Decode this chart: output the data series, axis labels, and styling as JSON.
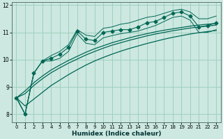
{
  "xlabel": "Humidex (Indice chaleur)",
  "background_color": "#cce8e0",
  "grid_color": "#99ccbb",
  "line_color": "#006655",
  "x_values": [
    0,
    1,
    2,
    3,
    4,
    5,
    6,
    7,
    8,
    9,
    10,
    11,
    12,
    13,
    14,
    15,
    16,
    17,
    18,
    19,
    20,
    21,
    22,
    23
  ],
  "y_main": [
    8.6,
    8.0,
    9.5,
    9.95,
    10.05,
    10.2,
    10.45,
    11.05,
    10.75,
    10.7,
    11.0,
    11.05,
    11.1,
    11.1,
    11.2,
    11.35,
    11.4,
    11.55,
    11.7,
    11.75,
    11.6,
    11.2,
    11.25,
    11.35
  ],
  "y_env_upper": [
    8.6,
    8.0,
    9.5,
    9.95,
    10.15,
    10.3,
    10.55,
    11.1,
    10.9,
    10.85,
    11.15,
    11.2,
    11.3,
    11.35,
    11.45,
    11.55,
    11.6,
    11.7,
    11.8,
    11.85,
    11.75,
    11.5,
    11.5,
    11.6
  ],
  "y_env_lower": [
    8.6,
    8.0,
    9.5,
    9.95,
    9.95,
    10.05,
    10.3,
    10.95,
    10.6,
    10.55,
    10.8,
    10.88,
    10.95,
    11.0,
    11.05,
    11.15,
    11.25,
    11.4,
    11.55,
    11.6,
    11.45,
    11.0,
    11.0,
    11.1
  ],
  "y_trend_top": [
    8.6,
    8.85,
    9.15,
    9.4,
    9.62,
    9.8,
    9.97,
    10.12,
    10.27,
    10.4,
    10.51,
    10.62,
    10.71,
    10.8,
    10.88,
    10.95,
    11.02,
    11.08,
    11.13,
    11.18,
    11.23,
    11.27,
    11.3,
    11.33
  ],
  "y_trend_mid": [
    8.6,
    8.75,
    9.05,
    9.3,
    9.52,
    9.7,
    9.87,
    10.02,
    10.17,
    10.3,
    10.42,
    10.53,
    10.62,
    10.71,
    10.79,
    10.87,
    10.94,
    11.0,
    11.06,
    11.11,
    11.16,
    11.2,
    11.23,
    11.27
  ],
  "y_trend_bot": [
    8.6,
    8.3,
    8.55,
    8.8,
    9.05,
    9.25,
    9.45,
    9.63,
    9.8,
    9.95,
    10.08,
    10.2,
    10.31,
    10.41,
    10.5,
    10.59,
    10.67,
    10.75,
    10.82,
    10.88,
    10.94,
    10.99,
    11.03,
    11.07
  ],
  "ylim": [
    7.7,
    12.1
  ],
  "yticks": [
    8,
    9,
    10,
    11,
    12
  ],
  "xticks": [
    0,
    1,
    2,
    3,
    4,
    5,
    6,
    7,
    8,
    9,
    10,
    11,
    12,
    13,
    14,
    15,
    16,
    17,
    18,
    19,
    20,
    21,
    22,
    23
  ]
}
